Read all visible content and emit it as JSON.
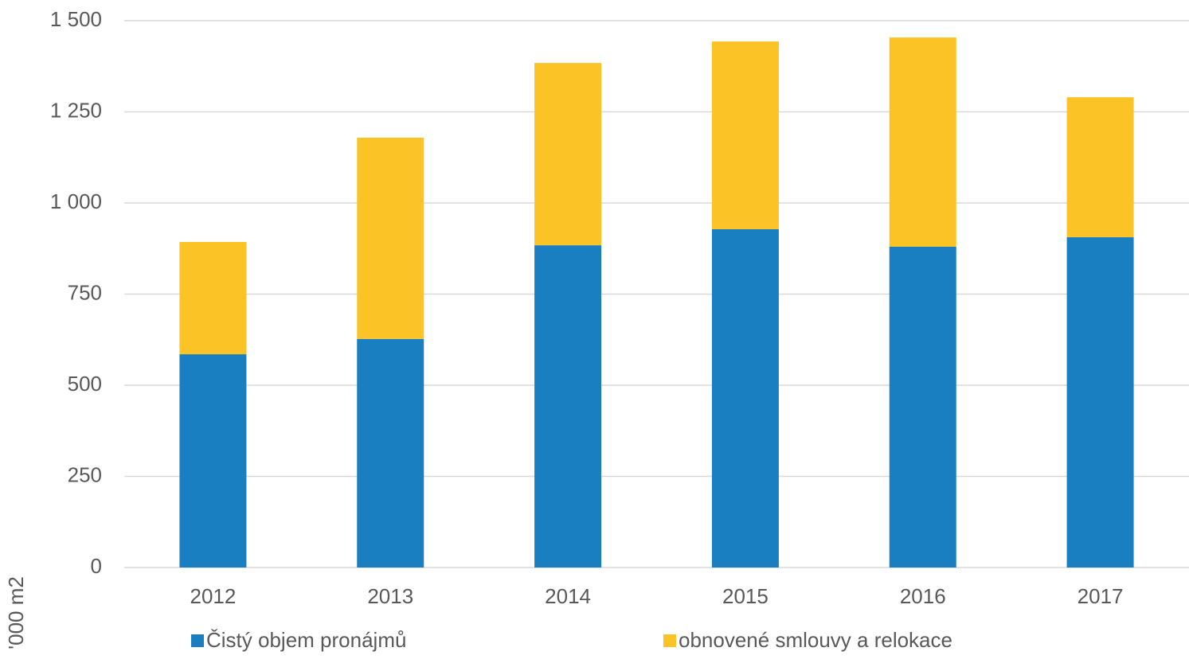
{
  "chart_data": {
    "type": "stacked_bar",
    "y_label": "'000 m2",
    "categories": [
      "2012",
      "2013",
      "2014",
      "2015",
      "2016",
      "2017"
    ],
    "series": [
      {
        "name": "Čistý objem pronájmů",
        "color": "#1a7fc1",
        "values": [
          585,
          627,
          884,
          928,
          880,
          906
        ]
      },
      {
        "name": "obnovené smlouvy a relokace",
        "color": "#fcc326",
        "values": [
          308,
          552,
          500,
          515,
          574,
          384
        ]
      }
    ],
    "ylim": [
      0,
      1500
    ],
    "yticks": [
      0,
      250,
      500,
      750,
      {
        "value": 1000,
        "label": "1 000"
      },
      {
        "value": 1250,
        "label": "1 250"
      },
      {
        "value": 1500,
        "label": "1 500"
      }
    ],
    "grid": true
  }
}
